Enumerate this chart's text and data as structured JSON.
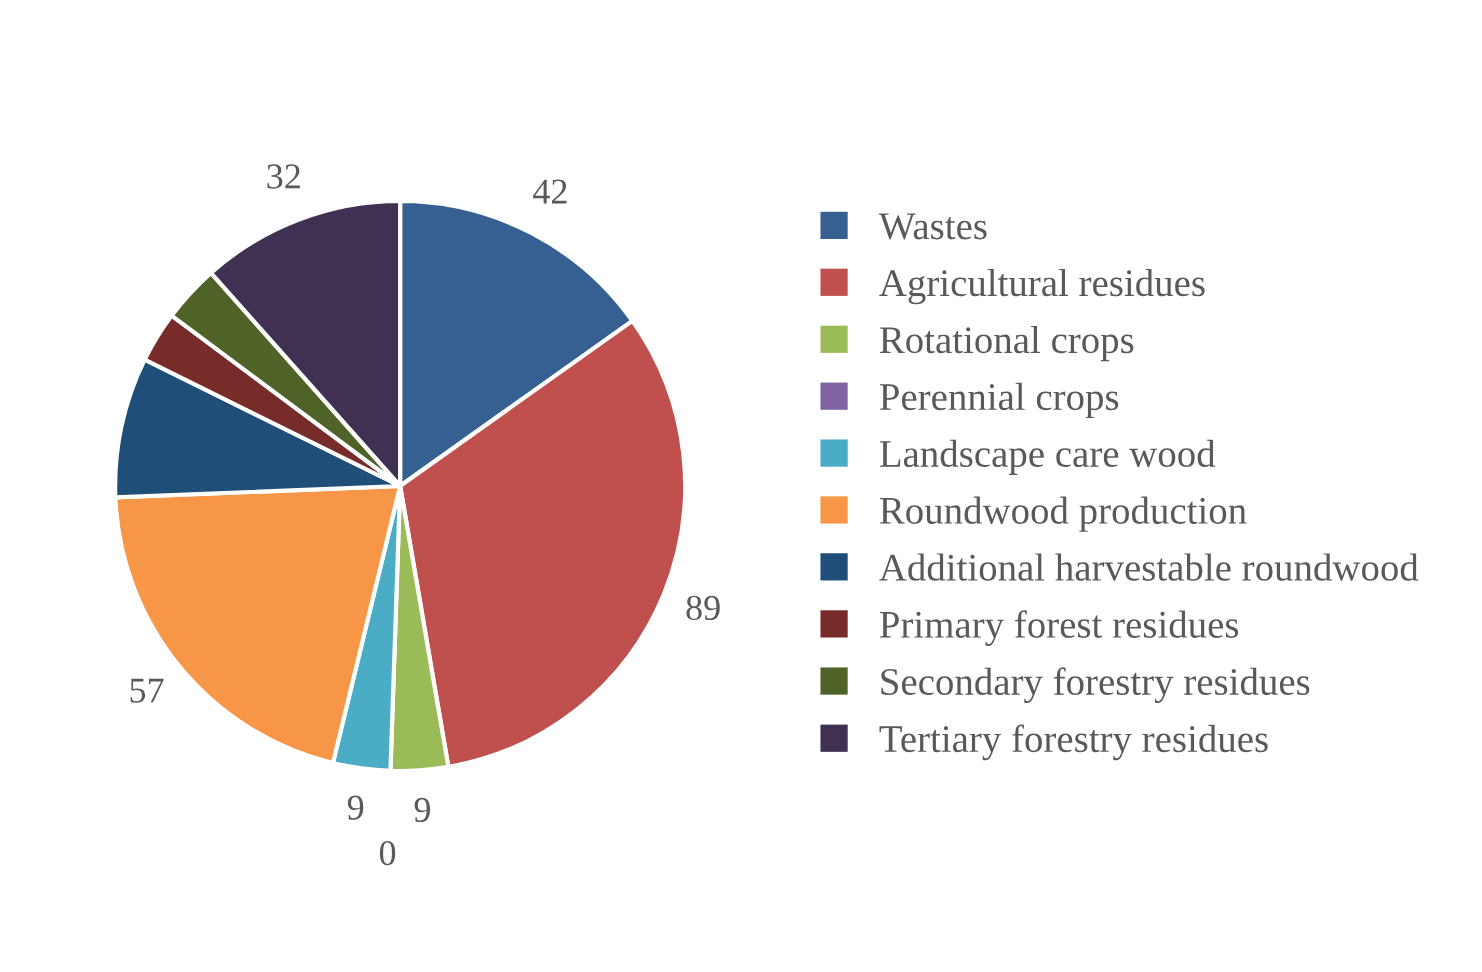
{
  "chart_data": {
    "type": "pie",
    "categories": [
      "Wastes",
      "Agricultural residues",
      "Rotational crops",
      "Perennial crops",
      "Landscape care wood",
      "Roundwood production",
      "Additional harvestable roundwood",
      "Primary forest residues",
      "Secondary forestry residues",
      "Tertiary forestry residues"
    ],
    "values": [
      42,
      89,
      9,
      0,
      9,
      57,
      22,
      8,
      9,
      32
    ],
    "value_labels": [
      "42",
      "89",
      "9",
      "0",
      "9",
      "57",
      null,
      null,
      null,
      "32"
    ],
    "colors": [
      "#366092",
      "#c0504d",
      "#9bbb59",
      "#8064a2",
      "#4bacc6",
      "#f79646",
      "#1f4e79",
      "#772c2a",
      "#4f6228",
      "#403152"
    ],
    "legend": "right"
  }
}
